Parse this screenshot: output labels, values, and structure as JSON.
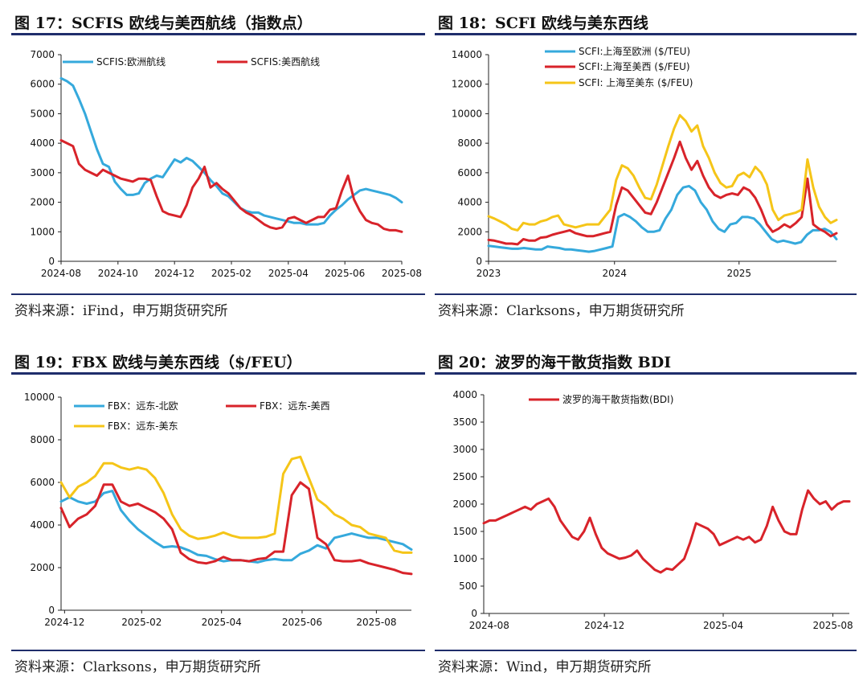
{
  "panels": [
    {
      "title": "图 17：SCFIS 欧线与美西航线（指数点）",
      "source": "资料来源：iFind，申万期货研究所",
      "chart_data": {
        "type": "line",
        "x_ticks": [
          "2024-08",
          "2024-10",
          "2024-12",
          "2025-02",
          "2025-04",
          "2025-06",
          "2025-08"
        ],
        "ylim": [
          0,
          7000
        ],
        "y_ticks": [
          "0",
          "1000",
          "2000",
          "3000",
          "4000",
          "5000",
          "6000",
          "7000"
        ],
        "legend_position": "top-left",
        "series": [
          {
            "name": "SCFIS:欧洲航线",
            "color": "#35a9dc",
            "values": [
              6200,
              6100,
              5950,
              5500,
              5000,
              4400,
              3800,
              3300,
              3200,
              2700,
              2450,
              2250,
              2250,
              2300,
              2650,
              2800,
              2900,
              2850,
              3150,
              3450,
              3350,
              3500,
              3400,
              3200,
              3000,
              2750,
              2550,
              2300,
              2200,
              2000,
              1800,
              1700,
              1650,
              1650,
              1550,
              1500,
              1450,
              1400,
              1350,
              1300,
              1300,
              1250,
              1250,
              1250,
              1300,
              1550,
              1750,
              1900,
              2100,
              2250,
              2400,
              2450,
              2400,
              2350,
              2300,
              2250,
              2150,
              2000
            ]
          },
          {
            "name": "SCFIS:美西航线",
            "color": "#d8232a",
            "values": [
              4100,
              4000,
              3900,
              3300,
              3100,
              3000,
              2900,
              3100,
              3000,
              2900,
              2800,
              2750,
              2700,
              2800,
              2800,
              2750,
              2200,
              1700,
              1600,
              1550,
              1500,
              1900,
              2500,
              2800,
              3200,
              2500,
              2650,
              2450,
              2300,
              2050,
              1800,
              1650,
              1550,
              1400,
              1250,
              1150,
              1100,
              1150,
              1450,
              1500,
              1400,
              1300,
              1400,
              1500,
              1500,
              1750,
              1800,
              2400,
              2900,
              2100,
              1700,
              1400,
              1300,
              1250,
              1100,
              1050,
              1050,
              1000
            ]
          }
        ]
      }
    },
    {
      "title": "图 18：SCFI 欧线与美东西线",
      "source": "资料来源：Clarksons，申万期货研究所",
      "chart_data": {
        "type": "line",
        "x_ticks": [
          "2023",
          "2024",
          "2025"
        ],
        "ylim": [
          0,
          14000
        ],
        "y_ticks": [
          "0",
          "2000",
          "4000",
          "6000",
          "8000",
          "10000",
          "12000",
          "14000"
        ],
        "legend_position": "top-center",
        "series": [
          {
            "name": "SCFI:上海至欧洲 ($/TEU)",
            "color": "#35a9dc",
            "values": [
              1050,
              1000,
              950,
              900,
              850,
              850,
              900,
              850,
              800,
              800,
              1000,
              950,
              900,
              800,
              800,
              750,
              700,
              650,
              700,
              800,
              900,
              1000,
              3000,
              3200,
              3000,
              2700,
              2300,
              2000,
              2000,
              2100,
              2900,
              3500,
              4500,
              5000,
              5100,
              4800,
              4000,
              3500,
              2700,
              2200,
              2000,
              2500,
              2600,
              3000,
              3000,
              2900,
              2500,
              2000,
              1500,
              1300,
              1400,
              1300,
              1200,
              1300,
              1800,
              2100,
              2100,
              2200,
              2000,
              1500
            ]
          },
          {
            "name": "SCFI:上海至美西 ($/FEU)",
            "color": "#d8232a",
            "values": [
              1450,
              1400,
              1300,
              1200,
              1200,
              1150,
              1500,
              1400,
              1400,
              1600,
              1650,
              1800,
              1900,
              2000,
              2100,
              1900,
              1800,
              1700,
              1700,
              1800,
              1900,
              2000,
              3800,
              5000,
              4800,
              4300,
              3800,
              3300,
              3200,
              4000,
              5000,
              6000,
              7000,
              8100,
              7000,
              6200,
              6800,
              5800,
              5000,
              4500,
              4300,
              4500,
              4600,
              4500,
              5000,
              4800,
              4300,
              3500,
              2500,
              2000,
              2200,
              2500,
              2300,
              2600,
              3000,
              5600,
              2500,
              2200,
              2000,
              1700,
              1900
            ]
          },
          {
            "name": "SCFI: 上海至美东 ($/FEU)",
            "color": "#f5c518",
            "values": [
              3050,
              2900,
              2700,
              2500,
              2200,
              2100,
              2600,
              2500,
              2500,
              2700,
              2800,
              3000,
              3100,
              2500,
              2400,
              2300,
              2400,
              2500,
              2500,
              2500,
              3000,
              3500,
              5500,
              6500,
              6300,
              5800,
              5000,
              4300,
              4200,
              5200,
              6500,
              7800,
              9000,
              9900,
              9500,
              8800,
              9200,
              7800,
              7000,
              6000,
              5300,
              5000,
              5100,
              5800,
              6000,
              5700,
              6400,
              6000,
              5200,
              3500,
              2800,
              3100,
              3200,
              3300,
              3500,
              6900,
              5000,
              3700,
              3000,
              2600,
              2800
            ]
          }
        ]
      }
    },
    {
      "title": "图 19：FBX 欧线与美东西线（$/FEU）",
      "source": "资料来源：Clarksons，申万期货研究所",
      "chart_data": {
        "type": "line",
        "x_ticks": [
          "2024-12",
          "2025-02",
          "2025-04",
          "2025-06",
          "2025-08"
        ],
        "ylim": [
          0,
          10000
        ],
        "y_ticks": [
          "0",
          "2000",
          "4000",
          "6000",
          "8000",
          "10000"
        ],
        "legend_position": "top",
        "series": [
          {
            "name": "FBX：远东-北欧",
            "color": "#35a9dc",
            "values": [
              5100,
              5300,
              5100,
              5000,
              5100,
              5500,
              5600,
              4700,
              4200,
              3800,
              3500,
              3200,
              2950,
              3000,
              2950,
              2800,
              2600,
              2550,
              2400,
              2300,
              2350,
              2350,
              2300,
              2250,
              2350,
              2400,
              2350,
              2350,
              2650,
              2800,
              3050,
              2900,
              3400,
              3500,
              3600,
              3500,
              3400,
              3400,
              3300,
              3200,
              3100,
              2850
            ]
          },
          {
            "name": "FBX：远东-美西",
            "color": "#d8232a",
            "values": [
              4800,
              3900,
              4300,
              4500,
              4900,
              5900,
              5900,
              5100,
              4900,
              5000,
              4800,
              4600,
              4300,
              3800,
              2700,
              2400,
              2250,
              2200,
              2300,
              2500,
              2350,
              2350,
              2300,
              2400,
              2450,
              2750,
              2750,
              5400,
              6000,
              5700,
              3400,
              3100,
              2350,
              2300,
              2300,
              2350,
              2200,
              2100,
              2000,
              1900,
              1750,
              1700
            ]
          },
          {
            "name": "FBX：远东-美东",
            "color": "#f5c518",
            "values": [
              6000,
              5300,
              5800,
              6000,
              6300,
              6900,
              6900,
              6700,
              6600,
              6700,
              6600,
              6200,
              5500,
              4500,
              3800,
              3500,
              3350,
              3400,
              3500,
              3650,
              3500,
              3400,
              3400,
              3400,
              3450,
              3600,
              6400,
              7100,
              7200,
              6200,
              5200,
              4900,
              4500,
              4300,
              4000,
              3900,
              3600,
              3500,
              3400,
              2800,
              2700,
              2700
            ]
          }
        ]
      }
    },
    {
      "title": "图 20：波罗的海干散货指数 BDI",
      "source": "资料来源：Wind，申万期货研究所",
      "chart_data": {
        "type": "line",
        "x_ticks": [
          "2024-08",
          "2024-12",
          "2025-04",
          "2025-08"
        ],
        "ylim": [
          0,
          4000
        ],
        "y_ticks": [
          "0",
          "500",
          "1000",
          "1500",
          "2000",
          "2500",
          "3000",
          "3500",
          "4000"
        ],
        "legend_position": "top-center",
        "series": [
          {
            "name": "波罗的海干散货指数(BDI)",
            "color": "#d8232a",
            "values": [
              1650,
              1700,
              1700,
              1750,
              1800,
              1850,
              1900,
              1950,
              1900,
              2000,
              2050,
              2100,
              1950,
              1700,
              1550,
              1400,
              1350,
              1500,
              1750,
              1450,
              1200,
              1100,
              1050,
              1000,
              1020,
              1060,
              1150,
              1000,
              900,
              800,
              750,
              820,
              800,
              900,
              1000,
              1300,
              1650,
              1600,
              1550,
              1450,
              1250,
              1300,
              1350,
              1400,
              1350,
              1400,
              1300,
              1350,
              1600,
              1950,
              1700,
              1500,
              1450,
              1450,
              1900,
              2250,
              2100,
              2000,
              2050,
              1900,
              2000,
              2050,
              2050
            ]
          }
        ]
      }
    }
  ]
}
